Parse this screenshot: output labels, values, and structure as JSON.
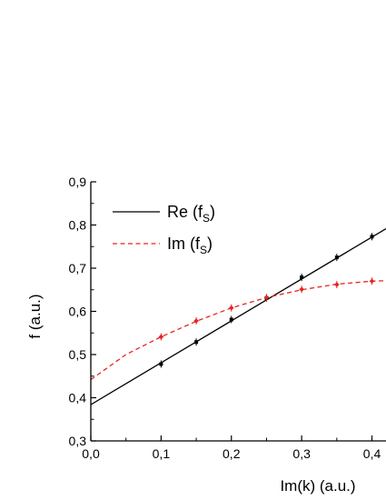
{
  "chart_data": {
    "type": "line",
    "xlabel": "Im(k) (a.u.)",
    "ylabel": "f (a.u.)",
    "xlim": [
      0.0,
      0.42
    ],
    "ylim": [
      0.3,
      0.9
    ],
    "x_ticks": [
      "0,0",
      "0,1",
      "0,2",
      "0,3",
      "0,4"
    ],
    "y_ticks": [
      "0,3",
      "0,4",
      "0,5",
      "0,6",
      "0,7",
      "0,8",
      "0,9"
    ],
    "grid": false,
    "legend_position": "top-left",
    "series": [
      {
        "name": "Re (f",
        "name_subscript": "S",
        "name_suffix": ")",
        "color": "#000000",
        "line_style": "solid",
        "fit_line": {
          "intercept": 0.384,
          "slope": 0.97
        },
        "points_x": [
          0.1,
          0.15,
          0.2,
          0.25,
          0.3,
          0.35,
          0.4
        ],
        "points_y": [
          0.478,
          0.529,
          0.581,
          0.631,
          0.679,
          0.725,
          0.773
        ]
      },
      {
        "name": "Im (f",
        "name_subscript": "S",
        "name_suffix": ")",
        "color": "#e8241f",
        "line_style": "dashed",
        "fit_curve": {
          "x": [
            0.0,
            0.05,
            0.1,
            0.15,
            0.2,
            0.25,
            0.3,
            0.35,
            0.4,
            0.42
          ],
          "y": [
            0.442,
            0.5,
            0.541,
            0.577,
            0.608,
            0.632,
            0.65,
            0.663,
            0.67,
            0.671
          ]
        },
        "points_x": [
          0.1,
          0.15,
          0.2,
          0.25,
          0.3,
          0.35,
          0.4
        ],
        "points_y": [
          0.541,
          0.578,
          0.608,
          0.632,
          0.651,
          0.662,
          0.67
        ]
      }
    ]
  }
}
